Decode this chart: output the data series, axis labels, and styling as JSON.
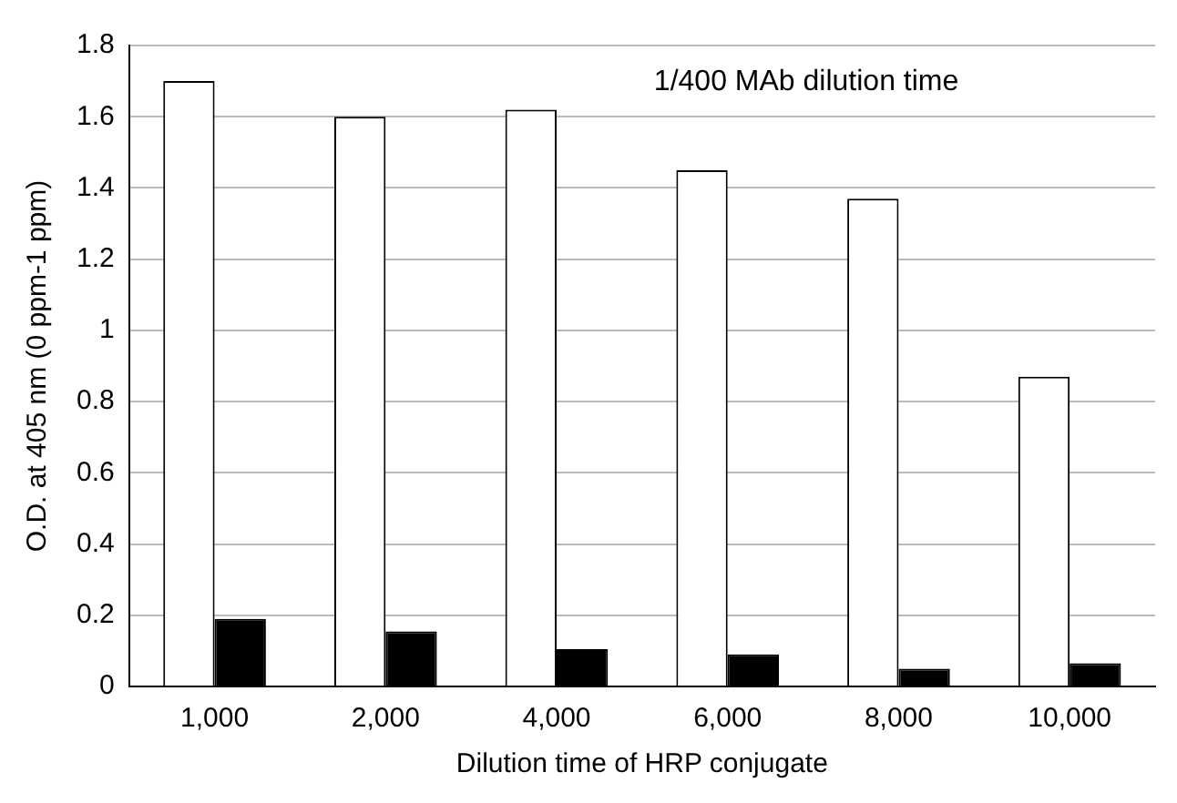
{
  "chart_data": {
    "type": "bar",
    "xlabel": "Dilution time of HRP conjugate",
    "ylabel": "O.D. at 405 nm (0 ppm-1 ppm)",
    "annotations": [
      "1/400 MAb dilution time"
    ],
    "categories": [
      "1,000",
      "2,000",
      "4,000",
      "6,000",
      "8,000",
      "10,000"
    ],
    "series": [
      {
        "color": "#ffffff",
        "values": [
          1.7,
          1.6,
          1.62,
          1.45,
          1.37,
          0.87
        ]
      },
      {
        "color": "#000000",
        "values": [
          0.19,
          0.155,
          0.105,
          0.09,
          0.05,
          0.065
        ]
      }
    ],
    "ylim": [
      0,
      1.8
    ],
    "yticks": [
      0,
      0.2,
      0.4,
      0.6,
      0.8,
      1,
      1.2,
      1.4,
      1.6,
      1.8
    ],
    "grid": "y",
    "legend": false
  }
}
